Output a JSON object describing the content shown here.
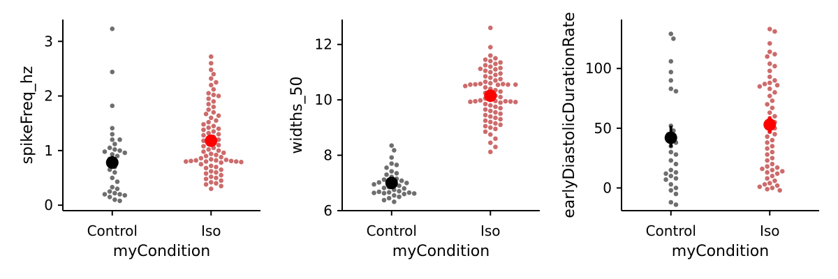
{
  "chart_data": [
    {
      "type": "scatter",
      "subtype": "swarm-with-mean-and-error",
      "xlabel": "myCondition",
      "ylabel": "spikeFreq_hz",
      "categories": [
        "Control",
        "Iso"
      ],
      "ylim": [
        -0.1,
        3.4
      ],
      "yticks": [
        0,
        1,
        2,
        3
      ],
      "grid": false,
      "series": [
        {
          "category": "Control",
          "color": "#6e6e6e",
          "mean_color": "#000000",
          "mean": 0.78,
          "err": [
            0.68,
            0.9
          ],
          "values": [
            3.23,
            2.44,
            1.82,
            1.41,
            1.3,
            1.2,
            1.2,
            1.12,
            1.05,
            1.02,
            1.0,
            0.98,
            0.96,
            0.93,
            0.9,
            0.85,
            0.8,
            0.75,
            0.7,
            0.65,
            0.6,
            0.5,
            0.43,
            0.33,
            0.3,
            0.25,
            0.22,
            0.2,
            0.2,
            0.18,
            0.15,
            0.1,
            0.08
          ]
        },
        {
          "category": "Iso",
          "color": "#cd6b6b",
          "mean_color": "#ff0000",
          "mean": 1.18,
          "err": [
            1.1,
            1.26
          ],
          "values": [
            2.72,
            2.6,
            2.48,
            2.4,
            2.32,
            2.25,
            2.2,
            2.12,
            2.05,
            2.02,
            2.0,
            1.95,
            1.9,
            1.85,
            1.8,
            1.75,
            1.7,
            1.67,
            1.64,
            1.6,
            1.55,
            1.52,
            1.48,
            1.45,
            1.42,
            1.4,
            1.38,
            1.35,
            1.32,
            1.3,
            1.28,
            1.25,
            1.22,
            1.2,
            1.18,
            1.15,
            1.12,
            1.1,
            1.08,
            1.05,
            1.02,
            1.0,
            0.98,
            0.96,
            0.94,
            0.92,
            0.9,
            0.88,
            0.86,
            0.84,
            0.83,
            0.82,
            0.82,
            0.81,
            0.81,
            0.8,
            0.8,
            0.8,
            0.79,
            0.78,
            0.75,
            0.72,
            0.7,
            0.68,
            0.65,
            0.62,
            0.6,
            0.58,
            0.55,
            0.52,
            0.5,
            0.48,
            0.45,
            0.42,
            0.4,
            0.38,
            0.35,
            0.3
          ]
        }
      ]
    },
    {
      "type": "scatter",
      "subtype": "swarm-with-mean-and-error",
      "xlabel": "myCondition",
      "ylabel": "widths_50",
      "categories": [
        "Control",
        "Iso"
      ],
      "ylim": [
        6.0,
        12.9
      ],
      "yticks": [
        6,
        8,
        10,
        12
      ],
      "grid": false,
      "series": [
        {
          "category": "Control",
          "color": "#6e6e6e",
          "mean_color": "#000000",
          "mean": 7.0,
          "err": [
            6.9,
            7.12
          ],
          "values": [
            8.35,
            8.18,
            7.92,
            7.7,
            7.65,
            7.55,
            7.42,
            7.35,
            7.3,
            7.22,
            7.15,
            7.12,
            7.08,
            7.05,
            7.02,
            7.0,
            6.98,
            6.95,
            6.9,
            6.85,
            6.82,
            6.8,
            6.75,
            6.7,
            6.68,
            6.66,
            6.65,
            6.64,
            6.63,
            6.62,
            6.6,
            6.55,
            6.5,
            6.45,
            6.38,
            6.32
          ]
        },
        {
          "category": "Iso",
          "color": "#cd6b6b",
          "mean_color": "#ff0000",
          "mean": 10.15,
          "err": [
            10.03,
            10.27
          ],
          "values": [
            12.6,
            11.9,
            11.6,
            11.5,
            11.45,
            11.4,
            11.35,
            11.3,
            11.25,
            11.2,
            11.15,
            11.12,
            11.1,
            11.05,
            11.0,
            10.95,
            10.9,
            10.85,
            10.8,
            10.75,
            10.7,
            10.65,
            10.6,
            10.58,
            10.57,
            10.56,
            10.55,
            10.55,
            10.55,
            10.54,
            10.5,
            10.45,
            10.4,
            10.35,
            10.3,
            10.25,
            10.2,
            10.15,
            10.1,
            10.05,
            10.0,
            9.98,
            9.96,
            9.95,
            9.95,
            9.94,
            9.93,
            9.92,
            9.9,
            9.85,
            9.8,
            9.75,
            9.7,
            9.65,
            9.6,
            9.55,
            9.5,
            9.45,
            9.4,
            9.35,
            9.3,
            9.25,
            9.2,
            9.15,
            9.1,
            9.05,
            9.0,
            8.95,
            8.85,
            8.75,
            8.6,
            8.45,
            8.3,
            8.12
          ]
        }
      ]
    },
    {
      "type": "scatter",
      "subtype": "swarm-with-mean-and-error",
      "xlabel": "myCondition",
      "ylabel": "earlyDiastolicDurationRate",
      "categories": [
        "Control",
        "Iso"
      ],
      "ylim": [
        -19,
        141
      ],
      "yticks": [
        0,
        50,
        100
      ],
      "grid": false,
      "series": [
        {
          "category": "Control",
          "color": "#6e6e6e",
          "mean_color": "#000000",
          "mean": 42,
          "err": [
            34,
            52
          ],
          "values": [
            129,
            125,
            106,
            97,
            90,
            83,
            81,
            52,
            48,
            45,
            40,
            38,
            35,
            30,
            28,
            23,
            20,
            15,
            13,
            12,
            10,
            8,
            7,
            3,
            0,
            -2,
            -5,
            -12,
            -14
          ]
        },
        {
          "category": "Iso",
          "color": "#cd6b6b",
          "mean_color": "#ff0000",
          "mean": 53,
          "err": [
            46,
            60
          ],
          "values": [
            133,
            131,
            121,
            114,
            112,
            110,
            104,
            102,
            98,
            93,
            90,
            88,
            87,
            86,
            85,
            83,
            80,
            77,
            73,
            70,
            67,
            63,
            60,
            58,
            55,
            52,
            50,
            47,
            45,
            43,
            40,
            38,
            35,
            33,
            30,
            28,
            25,
            23,
            20,
            18,
            17,
            16,
            15,
            14,
            13,
            12,
            10,
            8,
            6,
            4,
            3,
            2,
            1,
            0,
            -1,
            -2
          ]
        }
      ]
    }
  ]
}
